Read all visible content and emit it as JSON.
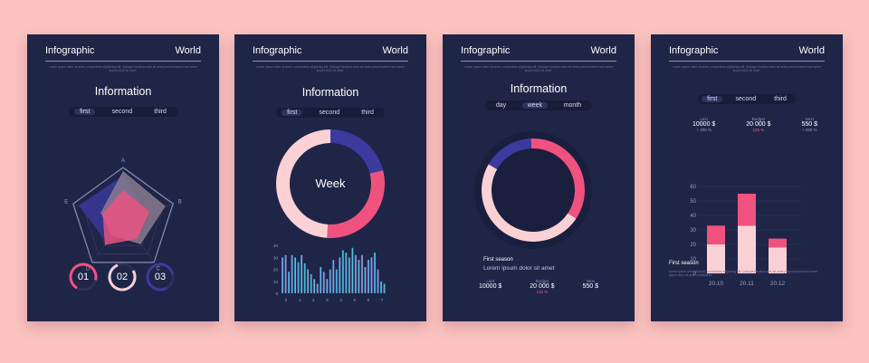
{
  "cards": [
    {
      "header_left": "Infographic",
      "header_right": "World",
      "lorem": "Lorem ipsum dolor sit amet, consectetur adipiscing elit. Quisque faucibus ante sit amet purus tincidunt sed lorem ipsum dolor sit amet.",
      "title": "Information",
      "tabs": [
        "first",
        "second",
        "third"
      ],
      "radar_axes": [
        "A",
        "B",
        "C",
        "D",
        "E"
      ],
      "circles": [
        "01",
        "02",
        "03"
      ]
    },
    {
      "header_left": "Infographic",
      "header_right": "World",
      "lorem": "Lorem ipsum dolor sit amet, consectetur adipiscing elit. Quisque faucibus ante sit amet purus tincidunt sed lorem ipsum dolor sit amet.",
      "title": "Information",
      "tabs": [
        "first",
        "second",
        "third"
      ],
      "donut_center": "Week"
    },
    {
      "header_left": "Infographic",
      "header_right": "World",
      "lorem": "Lorem ipsum dolor sit amet, consectetur adipiscing elit. Quisque faucibus ante sit amet purus tincidunt sed lorem ipsum dolor sit amet.",
      "title": "Information",
      "tabs": [
        "day",
        "week",
        "month"
      ],
      "season_title": "First season",
      "season_sub": "Lorem ipsum dolor sit amet",
      "stats": [
        {
          "label": "Last",
          "value": "10000 $",
          "delta": ""
        },
        {
          "label": "Budget",
          "value": "20 000 $",
          "delta": "125 %"
        },
        {
          "label": "Next",
          "value": "550 $",
          "delta": ""
        }
      ]
    },
    {
      "header_left": "Infographic",
      "header_right": "World",
      "lorem": "Lorem ipsum dolor sit amet, consectetur adipiscing elit. Quisque faucibus ante sit amet purus tincidunt sed lorem ipsum dolor sit amet.",
      "tabs": [
        "first",
        "second",
        "third"
      ],
      "stats": [
        {
          "label": "Last",
          "value": "10000 $",
          "delta": "+ 200 %"
        },
        {
          "label": "Budget",
          "value": "20 000 $",
          "delta": "125 %"
        },
        {
          "label": "Next",
          "value": "550 $",
          "delta": "+ 220 %"
        }
      ],
      "season_title": "First season",
      "lorem2": "Lorem ipsum dolor sit amet, consectetur adipiscing elit. Quisque faucibus ante sit amet purus tincidunt sed lorem ipsum dolor sit amet consectetur."
    }
  ],
  "colors": {
    "background": "#fbc3c0",
    "card": "#1f2547",
    "pink": "#f0527f",
    "light_pink": "#fcd1d6",
    "indigo": "#3b3a9e",
    "gray_mauve": "#8e7f92"
  },
  "chart_data": [
    {
      "type": "radar",
      "axes": [
        "A",
        "B",
        "C",
        "D",
        "E"
      ],
      "rmax": 5,
      "series": [
        {
          "values": [
            4.2,
            2.2,
            1.6,
            2.6,
            4.4
          ],
          "color": "#3b3a9e"
        },
        {
          "values": [
            4.6,
            4.2,
            2.8,
            1.8,
            2.2
          ],
          "color": "#8e7f92"
        },
        {
          "values": [
            2.8,
            2.6,
            2.2,
            2.9,
            2.0
          ],
          "color": "#f0527f"
        }
      ]
    },
    {
      "type": "pie",
      "center_label": "Week",
      "slices": [
        {
          "value": 21,
          "color": "#3b3a9e"
        },
        {
          "value": 30,
          "color": "#f0527f"
        },
        {
          "value": 49,
          "color": "#fcd1d6"
        }
      ]
    },
    {
      "type": "bar",
      "y_ticks": [
        "40",
        "30",
        "20",
        "10",
        "0"
      ],
      "ylim": [
        0,
        40
      ],
      "x_tick_labels": [
        "0",
        "1",
        "2",
        "3",
        "4",
        "5",
        "6",
        "7"
      ],
      "values": [
        30,
        32,
        18,
        32,
        30,
        26,
        32,
        25,
        20,
        16,
        12,
        8,
        22,
        18,
        12,
        20,
        28,
        20,
        30,
        36,
        34,
        30,
        38,
        32,
        28,
        32,
        22,
        28,
        30,
        34,
        20,
        10,
        8
      ]
    },
    {
      "type": "pie",
      "slices": [
        {
          "value": 16,
          "color": "#3b3a9e"
        },
        {
          "value": 35,
          "color": "#f0527f"
        },
        {
          "value": 49,
          "color": "#fcd1d6"
        }
      ]
    },
    {
      "type": "bar",
      "categories": [
        "20.10",
        "20.11",
        "20.12"
      ],
      "ylim": [
        0,
        60
      ],
      "y_ticks": [
        "60",
        "50",
        "40",
        "30",
        "20",
        "10",
        "0"
      ],
      "series": [
        {
          "values": [
            20,
            33,
            18
          ],
          "color": "#fcd1d6"
        },
        {
          "values": [
            13,
            22,
            6
          ],
          "color": "#f0527f"
        }
      ]
    }
  ]
}
